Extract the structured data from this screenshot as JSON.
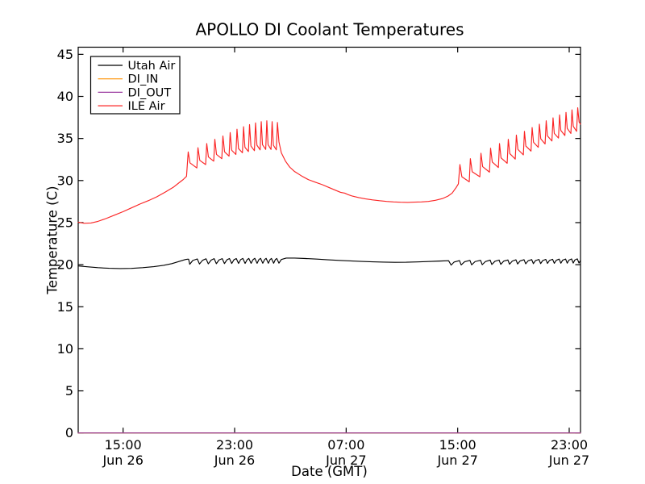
{
  "figure": {
    "background": "#ffffff",
    "frame_color": "#000000"
  },
  "chart_data": {
    "type": "line",
    "title": "APOLLO DI Coolant Temperatures",
    "xlabel": "Date (GMT)",
    "ylabel": "Temperature (C)",
    "x_unit": "hours since Jun 26 12:00 GMT",
    "xlim": [
      -0.22,
      35.81
    ],
    "ylim": [
      0,
      45.85
    ],
    "grid": false,
    "legend_position": "upper left",
    "x_ticks": [
      {
        "t": 3,
        "time": "15:00",
        "date": "Jun 26"
      },
      {
        "t": 11,
        "time": "23:00",
        "date": "Jun 26"
      },
      {
        "t": 19,
        "time": "07:00",
        "date": "Jun 27"
      },
      {
        "t": 27,
        "time": "15:00",
        "date": "Jun 27"
      },
      {
        "t": 35,
        "time": "23:00",
        "date": "Jun 27"
      }
    ],
    "y_ticks": [
      0,
      5,
      10,
      15,
      20,
      25,
      30,
      35,
      40,
      45
    ],
    "series": [
      {
        "name": "Utah Air",
        "color": "#000000",
        "points": [
          [
            -0.22,
            19.85
          ],
          [
            0.5,
            19.74
          ],
          [
            1.2,
            19.64
          ],
          [
            2.0,
            19.57
          ],
          [
            2.8,
            19.54
          ],
          [
            3.6,
            19.56
          ],
          [
            4.4,
            19.64
          ],
          [
            5.2,
            19.76
          ],
          [
            5.9,
            19.92
          ],
          [
            6.5,
            20.12
          ],
          [
            7.0,
            20.38
          ],
          [
            7.45,
            20.6
          ],
          [
            7.62,
            20.65
          ],
          [
            7.7,
            20.65
          ],
          [
            7.78,
            20.05
          ],
          [
            8.0,
            20.5
          ],
          [
            8.32,
            20.68
          ],
          [
            8.48,
            20.08
          ],
          [
            8.7,
            20.52
          ],
          [
            8.95,
            20.7
          ],
          [
            9.11,
            20.1
          ],
          [
            9.32,
            20.55
          ],
          [
            9.53,
            20.72
          ],
          [
            9.69,
            20.12
          ],
          [
            9.88,
            20.56
          ],
          [
            10.11,
            20.72
          ],
          [
            10.27,
            20.13
          ],
          [
            10.45,
            20.58
          ],
          [
            10.63,
            20.73
          ],
          [
            10.79,
            20.14
          ],
          [
            10.95,
            20.58
          ],
          [
            11.12,
            20.73
          ],
          [
            11.28,
            20.15
          ],
          [
            11.43,
            20.6
          ],
          [
            11.59,
            20.74
          ],
          [
            11.75,
            20.15
          ],
          [
            11.9,
            20.6
          ],
          [
            12.02,
            20.74
          ],
          [
            12.18,
            20.16
          ],
          [
            12.32,
            20.6
          ],
          [
            12.45,
            20.75
          ],
          [
            12.61,
            20.16
          ],
          [
            12.74,
            20.6
          ],
          [
            12.86,
            20.75
          ],
          [
            13.02,
            20.17
          ],
          [
            13.15,
            20.6
          ],
          [
            13.26,
            20.75
          ],
          [
            13.42,
            20.17
          ],
          [
            13.54,
            20.6
          ],
          [
            13.64,
            20.74
          ],
          [
            13.8,
            20.17
          ],
          [
            13.92,
            20.6
          ],
          [
            14.02,
            20.74
          ],
          [
            14.18,
            20.18
          ],
          [
            14.35,
            20.62
          ],
          [
            14.7,
            20.78
          ],
          [
            15.3,
            20.78
          ],
          [
            16.1,
            20.73
          ],
          [
            16.9,
            20.66
          ],
          [
            17.7,
            20.58
          ],
          [
            18.5,
            20.51
          ],
          [
            19.3,
            20.45
          ],
          [
            20.1,
            20.39
          ],
          [
            20.9,
            20.34
          ],
          [
            21.7,
            20.3
          ],
          [
            22.5,
            20.28
          ],
          [
            23.3,
            20.29
          ],
          [
            24.1,
            20.33
          ],
          [
            24.9,
            20.38
          ],
          [
            25.7,
            20.43
          ],
          [
            26.35,
            20.47
          ],
          [
            26.53,
            19.95
          ],
          [
            26.75,
            20.32
          ],
          [
            27.13,
            20.48
          ],
          [
            27.25,
            19.97
          ],
          [
            27.5,
            20.35
          ],
          [
            27.88,
            20.51
          ],
          [
            28.0,
            19.98
          ],
          [
            28.25,
            20.37
          ],
          [
            28.64,
            20.52
          ],
          [
            28.76,
            20.0
          ],
          [
            29.0,
            20.38
          ],
          [
            29.33,
            20.54
          ],
          [
            29.45,
            20.02
          ],
          [
            29.67,
            20.4
          ],
          [
            29.97,
            20.55
          ],
          [
            30.09,
            20.04
          ],
          [
            30.3,
            20.42
          ],
          [
            30.6,
            20.56
          ],
          [
            30.72,
            20.06
          ],
          [
            30.92,
            20.43
          ],
          [
            31.18,
            20.58
          ],
          [
            31.3,
            20.08
          ],
          [
            31.48,
            20.45
          ],
          [
            31.76,
            20.59
          ],
          [
            31.88,
            20.1
          ],
          [
            32.05,
            20.46
          ],
          [
            32.31,
            20.6
          ],
          [
            32.43,
            20.12
          ],
          [
            32.58,
            20.48
          ],
          [
            32.83,
            20.62
          ],
          [
            32.95,
            20.13
          ],
          [
            33.1,
            20.49
          ],
          [
            33.32,
            20.63
          ],
          [
            33.44,
            20.15
          ],
          [
            33.58,
            20.5
          ],
          [
            33.81,
            20.64
          ],
          [
            33.93,
            20.16
          ],
          [
            34.07,
            20.52
          ],
          [
            34.28,
            20.66
          ],
          [
            34.4,
            20.17
          ],
          [
            34.53,
            20.53
          ],
          [
            34.74,
            20.67
          ],
          [
            34.86,
            20.18
          ],
          [
            34.98,
            20.54
          ],
          [
            35.17,
            20.68
          ],
          [
            35.29,
            20.19
          ],
          [
            35.4,
            20.55
          ],
          [
            35.58,
            20.69
          ],
          [
            35.7,
            20.2
          ],
          [
            35.81,
            20.5
          ]
        ]
      },
      {
        "name": "DI_IN",
        "color": "#ffa733",
        "points": [
          [
            -0.22,
            0
          ],
          [
            35.81,
            0
          ]
        ]
      },
      {
        "name": "DI_OUT",
        "color": "#9b3ba0",
        "points": [
          [
            -0.22,
            0
          ],
          [
            35.81,
            0
          ]
        ]
      },
      {
        "name": "ILE Air",
        "color": "#fb2424",
        "points": [
          [
            -0.22,
            25.05
          ],
          [
            0.2,
            24.92
          ],
          [
            0.7,
            24.95
          ],
          [
            1.2,
            25.15
          ],
          [
            1.8,
            25.5
          ],
          [
            2.4,
            25.9
          ],
          [
            3.0,
            26.3
          ],
          [
            3.6,
            26.75
          ],
          [
            4.2,
            27.2
          ],
          [
            4.8,
            27.6
          ],
          [
            5.4,
            28.05
          ],
          [
            6.0,
            28.6
          ],
          [
            6.6,
            29.2
          ],
          [
            7.1,
            29.85
          ],
          [
            7.3,
            30.1
          ],
          [
            7.55,
            30.5
          ],
          [
            7.67,
            33.4
          ],
          [
            7.8,
            32.1
          ],
          [
            8.29,
            31.5
          ],
          [
            8.37,
            33.9
          ],
          [
            8.5,
            32.4
          ],
          [
            8.92,
            31.9
          ],
          [
            9.0,
            34.4
          ],
          [
            9.12,
            32.8
          ],
          [
            9.5,
            32.3
          ],
          [
            9.58,
            34.9
          ],
          [
            9.7,
            33.1
          ],
          [
            10.08,
            32.6
          ],
          [
            10.16,
            35.3
          ],
          [
            10.28,
            33.4
          ],
          [
            10.6,
            32.9
          ],
          [
            10.68,
            35.7
          ],
          [
            10.79,
            33.6
          ],
          [
            11.09,
            33.1
          ],
          [
            11.17,
            36.1
          ],
          [
            11.28,
            33.8
          ],
          [
            11.56,
            33.3
          ],
          [
            11.64,
            36.4
          ],
          [
            11.74,
            33.95
          ],
          [
            11.99,
            33.45
          ],
          [
            12.07,
            36.65
          ],
          [
            12.17,
            34.1
          ],
          [
            12.42,
            33.55
          ],
          [
            12.5,
            36.85
          ],
          [
            12.6,
            34.2
          ],
          [
            12.83,
            33.65
          ],
          [
            12.91,
            37.0
          ],
          [
            13.0,
            34.25
          ],
          [
            13.23,
            33.7
          ],
          [
            13.31,
            37.1
          ],
          [
            13.4,
            34.25
          ],
          [
            13.61,
            33.7
          ],
          [
            13.69,
            37.0
          ],
          [
            13.78,
            34.2
          ],
          [
            13.99,
            33.65
          ],
          [
            14.07,
            36.9
          ],
          [
            14.18,
            34.6
          ],
          [
            14.35,
            33.3
          ],
          [
            14.65,
            32.3
          ],
          [
            14.95,
            31.6
          ],
          [
            15.28,
            31.1
          ],
          [
            15.8,
            30.55
          ],
          [
            16.3,
            30.1
          ],
          [
            16.8,
            29.8
          ],
          [
            17.3,
            29.5
          ],
          [
            17.8,
            29.15
          ],
          [
            18.3,
            28.8
          ],
          [
            18.6,
            28.6
          ],
          [
            18.9,
            28.5
          ],
          [
            19.1,
            28.35
          ],
          [
            19.45,
            28.15
          ],
          [
            19.9,
            27.97
          ],
          [
            20.4,
            27.82
          ],
          [
            20.9,
            27.7
          ],
          [
            21.4,
            27.6
          ],
          [
            21.9,
            27.52
          ],
          [
            22.4,
            27.46
          ],
          [
            22.9,
            27.42
          ],
          [
            23.4,
            27.4
          ],
          [
            23.9,
            27.43
          ],
          [
            24.4,
            27.46
          ],
          [
            24.9,
            27.52
          ],
          [
            25.4,
            27.65
          ],
          [
            25.9,
            27.85
          ],
          [
            26.3,
            28.15
          ],
          [
            26.6,
            28.5
          ],
          [
            26.9,
            29.2
          ],
          [
            27.05,
            29.6
          ],
          [
            27.16,
            31.9
          ],
          [
            27.3,
            30.45
          ],
          [
            27.83,
            29.85
          ],
          [
            27.91,
            32.6
          ],
          [
            28.04,
            31.05
          ],
          [
            28.59,
            30.45
          ],
          [
            28.67,
            33.25
          ],
          [
            28.79,
            31.65
          ],
          [
            29.28,
            31.0
          ],
          [
            29.36,
            33.85
          ],
          [
            29.48,
            32.2
          ],
          [
            29.92,
            31.55
          ],
          [
            30.0,
            34.4
          ],
          [
            30.11,
            32.7
          ],
          [
            30.55,
            32.05
          ],
          [
            30.63,
            34.9
          ],
          [
            30.74,
            33.2
          ],
          [
            31.13,
            32.55
          ],
          [
            31.21,
            35.4
          ],
          [
            31.32,
            33.7
          ],
          [
            31.71,
            33.05
          ],
          [
            31.79,
            35.85
          ],
          [
            31.89,
            34.1
          ],
          [
            32.26,
            33.5
          ],
          [
            32.34,
            36.3
          ],
          [
            32.44,
            34.55
          ],
          [
            32.78,
            33.95
          ],
          [
            32.86,
            36.7
          ],
          [
            32.96,
            34.95
          ],
          [
            33.27,
            34.35
          ],
          [
            33.35,
            37.1
          ],
          [
            33.44,
            35.3
          ],
          [
            33.76,
            34.7
          ],
          [
            33.84,
            37.45
          ],
          [
            33.93,
            35.6
          ],
          [
            34.23,
            35.05
          ],
          [
            34.31,
            37.8
          ],
          [
            34.4,
            35.95
          ],
          [
            34.69,
            35.35
          ],
          [
            34.77,
            38.1
          ],
          [
            34.86,
            36.2
          ],
          [
            35.12,
            35.6
          ],
          [
            35.2,
            38.4
          ],
          [
            35.29,
            36.45
          ],
          [
            35.53,
            35.85
          ],
          [
            35.61,
            38.65
          ],
          [
            35.71,
            36.95
          ],
          [
            35.81,
            36.7
          ]
        ]
      }
    ],
    "legend": {
      "entries": [
        {
          "label": "Utah Air",
          "color": "#000000"
        },
        {
          "label": "DI_IN",
          "color": "#ffa733"
        },
        {
          "label": "DI_OUT",
          "color": "#9b3ba0"
        },
        {
          "label": "ILE Air",
          "color": "#fb2424"
        }
      ]
    }
  }
}
